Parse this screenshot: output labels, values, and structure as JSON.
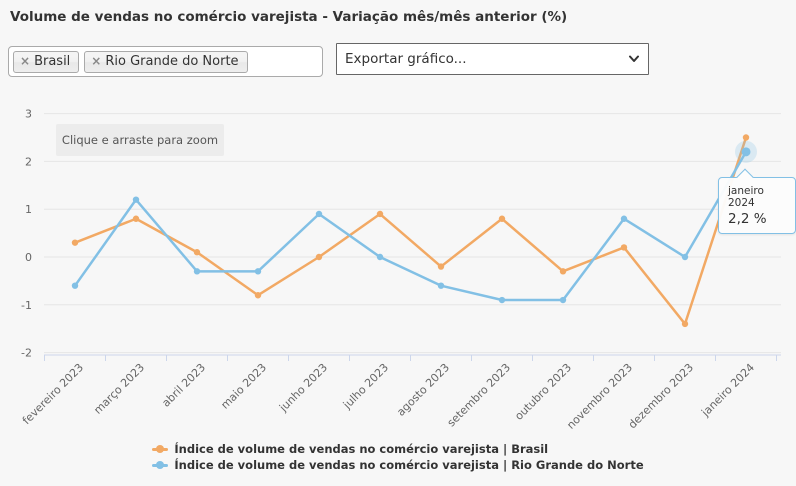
{
  "header": {
    "title": "Volume de vendas no comércio varejista - Variação mês/mês anterior (%)"
  },
  "filters": {
    "tags": [
      {
        "remove_icon": "×",
        "label": "Brasil"
      },
      {
        "remove_icon": "×",
        "label": "Rio Grande do Norte"
      }
    ],
    "export_select": {
      "value": "Exportar gráfico..."
    }
  },
  "chart": {
    "zoom_hint": "Clique e arraste para zoom",
    "tooltip": {
      "title": "janeiro 2024",
      "value": "2,2 %"
    }
  },
  "chart_data": {
    "type": "line",
    "title": "Volume de vendas no comércio varejista - Variação mês/mês anterior (%)",
    "categories": [
      "fevereiro 2023",
      "março 2023",
      "abril 2023",
      "maio 2023",
      "junho 2023",
      "julho 2023",
      "agosto 2023",
      "setembro 2023",
      "outubro 2023",
      "novembro 2023",
      "dezembro 2023",
      "janeiro 2024"
    ],
    "series": [
      {
        "name": "Índice de volume de vendas no comércio varejista | Brasil",
        "color": "#f2a964",
        "values": [
          0.3,
          0.8,
          0.1,
          -0.8,
          0,
          0.9,
          -0.2,
          0.8,
          -0.3,
          0.2,
          -1.4,
          2.5
        ]
      },
      {
        "name": "Índice de volume de vendas no comércio varejista | Rio Grande do Norte",
        "color": "#82c0e5",
        "values": [
          -0.6,
          1.2,
          -0.3,
          -0.3,
          0.9,
          0,
          -0.6,
          -0.9,
          -0.9,
          0.8,
          0,
          2.2
        ]
      }
    ],
    "ylim": [
      -2,
      3
    ],
    "yticks": [
      3,
      2,
      1,
      0,
      -1,
      -2
    ],
    "grid": true,
    "legend_position": "bottom",
    "highlight": {
      "series_index": 1,
      "point_index": 11,
      "label": "janeiro 2024",
      "value_label": "2,2 %"
    },
    "colors": {
      "gridline": "#e6e6e6",
      "axis_line": "#ccd6eb",
      "axis_label": "#666666",
      "halo": "rgba(130,192,229,0.25)"
    }
  }
}
